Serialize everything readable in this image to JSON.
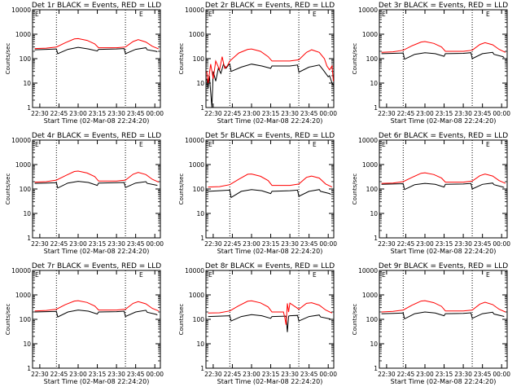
{
  "figure": {
    "colors": {
      "events": "#000000",
      "lld": "#ff0000",
      "axis": "#000000",
      "background": "#ffffff"
    },
    "x_tick_labels": [
      "22:30",
      "22:45",
      "23:00",
      "23:15",
      "23:30",
      "23:45",
      "00:00"
    ],
    "y_tick_labels": [
      "1",
      "10",
      "100",
      "1000",
      "10000"
    ],
    "ylabel": "Counts/sec",
    "xlabel": "Start Time (02-Mar-08 22:24:20)",
    "corner_marks": {
      "left": "E",
      "right": "E"
    }
  },
  "chart_data": [
    {
      "type": "line",
      "title": "Det 1r BLACK = Events, RED = LLD",
      "xlabel": "Start Time (02-Mar-08 22:24:20)",
      "ylabel": "Counts/sec",
      "yscale": "log",
      "ylim": [
        1,
        10000
      ],
      "xlim": [
        "22:24:20",
        "00:04:20"
      ],
      "vlines": [
        "22:43:00",
        "23:37:00"
      ],
      "series": [
        {
          "name": "Events",
          "color": "#000000",
          "x": [
            "22:26",
            "22:35",
            "22:43",
            "22:44",
            "22:52",
            "23:00",
            "23:08",
            "23:15",
            "23:16",
            "23:30",
            "23:36",
            "23:37",
            "23:45",
            "23:53",
            "23:54",
            "00:01",
            "00:02"
          ],
          "y": [
            230,
            240,
            250,
            160,
            240,
            290,
            250,
            205,
            240,
            250,
            260,
            160,
            240,
            280,
            230,
            200,
            190
          ]
        },
        {
          "name": "LLD",
          "color": "#ff0000",
          "x": [
            "22:26",
            "22:35",
            "22:43",
            "22:50",
            "22:57",
            "23:00",
            "23:07",
            "23:13",
            "23:16",
            "23:30",
            "23:37",
            "23:43",
            "23:47",
            "23:53",
            "23:58",
            "00:03"
          ],
          "y": [
            260,
            270,
            300,
            450,
            640,
            660,
            560,
            400,
            280,
            280,
            300,
            500,
            600,
            480,
            320,
            250
          ]
        }
      ]
    },
    {
      "type": "line",
      "title": "Det 2r BLACK = Events, RED = LLD",
      "xlabel": "Start Time (02-Mar-08 22:24:20)",
      "ylabel": "Counts/sec",
      "yscale": "log",
      "ylim": [
        1,
        10000
      ],
      "xlim": [
        "22:24:20",
        "00:04:20"
      ],
      "vlines": [
        "22:43:00",
        "23:37:00"
      ],
      "series": [
        {
          "name": "Events",
          "color": "#000000",
          "x": [
            "22:25",
            "22:26",
            "22:27",
            "22:29",
            "22:30",
            "22:32",
            "22:34",
            "22:36",
            "22:38",
            "22:40",
            "22:42",
            "22:43",
            "22:44",
            "22:52",
            "23:00",
            "23:08",
            "23:15",
            "23:16",
            "23:30",
            "23:36",
            "23:37",
            "23:45",
            "23:53",
            "23:56",
            "23:58",
            "00:00",
            "00:01",
            "00:03",
            "00:04"
          ],
          "y": [
            15,
            6,
            20,
            1,
            30,
            12,
            40,
            25,
            60,
            40,
            55,
            60,
            30,
            45,
            60,
            50,
            40,
            50,
            50,
            55,
            28,
            45,
            55,
            35,
            25,
            18,
            20,
            10,
            8
          ]
        },
        {
          "name": "LLD",
          "color": "#ff0000",
          "x": [
            "22:25",
            "22:26",
            "22:28",
            "22:30",
            "22:32",
            "22:35",
            "22:37",
            "22:39",
            "22:41",
            "22:43",
            "22:50",
            "22:57",
            "23:00",
            "23:07",
            "23:13",
            "23:16",
            "23:30",
            "23:37",
            "23:43",
            "23:47",
            "23:53",
            "23:57",
            "23:59",
            "00:01",
            "00:03",
            "00:04"
          ],
          "y": [
            30,
            10,
            60,
            15,
            80,
            35,
            120,
            40,
            50,
            80,
            170,
            240,
            250,
            200,
            120,
            80,
            80,
            90,
            180,
            230,
            180,
            100,
            50,
            35,
            50,
            12
          ]
        }
      ]
    },
    {
      "type": "line",
      "title": "Det 3r BLACK = Events, RED = LLD",
      "xlabel": "Start Time (02-Mar-08 22:24:20)",
      "ylabel": "Counts/sec",
      "yscale": "log",
      "ylim": [
        1,
        10000
      ],
      "xlim": [
        "22:24:20",
        "00:04:20"
      ],
      "vlines": [
        "22:43:00",
        "23:37:00"
      ],
      "series": [
        {
          "name": "Events",
          "color": "#000000",
          "x": [
            "22:26",
            "22:35",
            "22:43",
            "22:44",
            "22:52",
            "23:00",
            "23:08",
            "23:15",
            "23:16",
            "23:30",
            "23:36",
            "23:37",
            "23:45",
            "23:53",
            "23:54",
            "00:01",
            "00:02"
          ],
          "y": [
            160,
            165,
            170,
            95,
            150,
            175,
            160,
            125,
            160,
            165,
            175,
            100,
            160,
            180,
            150,
            120,
            110
          ]
        },
        {
          "name": "LLD",
          "color": "#ff0000",
          "x": [
            "22:26",
            "22:35",
            "22:43",
            "22:50",
            "22:57",
            "23:00",
            "23:07",
            "23:13",
            "23:16",
            "23:30",
            "23:37",
            "23:43",
            "23:47",
            "23:53",
            "23:58",
            "00:03"
          ],
          "y": [
            180,
            190,
            220,
            340,
            480,
            500,
            420,
            300,
            200,
            200,
            220,
            380,
            450,
            370,
            240,
            180
          ]
        }
      ]
    },
    {
      "type": "line",
      "title": "Det 4r BLACK = Events, RED = LLD",
      "xlabel": "Start Time (02-Mar-08 22:24:20)",
      "ylabel": "Counts/sec",
      "yscale": "log",
      "ylim": [
        1,
        10000
      ],
      "xlim": [
        "22:24:20",
        "00:04:20"
      ],
      "vlines": [
        "22:43:00",
        "23:37:00"
      ],
      "series": [
        {
          "name": "Events",
          "color": "#000000",
          "x": [
            "22:26",
            "22:35",
            "22:43",
            "22:44",
            "22:52",
            "23:00",
            "23:08",
            "23:15",
            "23:16",
            "23:30",
            "23:36",
            "23:37",
            "23:45",
            "23:53",
            "23:54",
            "00:01",
            "00:02"
          ],
          "y": [
            170,
            175,
            180,
            110,
            175,
            205,
            185,
            140,
            175,
            180,
            185,
            115,
            175,
            200,
            170,
            145,
            140
          ]
        },
        {
          "name": "LLD",
          "color": "#ff0000",
          "x": [
            "22:26",
            "22:35",
            "22:43",
            "22:50",
            "22:57",
            "23:00",
            "23:07",
            "23:13",
            "23:16",
            "23:30",
            "23:37",
            "23:43",
            "23:47",
            "23:53",
            "23:58",
            "00:03"
          ],
          "y": [
            190,
            200,
            230,
            350,
            520,
            540,
            450,
            320,
            210,
            210,
            230,
            400,
            480,
            390,
            250,
            190
          ]
        }
      ]
    },
    {
      "type": "line",
      "title": "Det 5r BLACK = Events, RED = LLD",
      "xlabel": "Start Time (02-Mar-08 22:24:20)",
      "ylabel": "Counts/sec",
      "yscale": "log",
      "ylim": [
        1,
        10000
      ],
      "xlim": [
        "22:24:20",
        "00:04:20"
      ],
      "vlines": [
        "22:43:00",
        "23:37:00"
      ],
      "series": [
        {
          "name": "Events",
          "color": "#000000",
          "x": [
            "22:26",
            "22:35",
            "22:43",
            "22:44",
            "22:52",
            "23:00",
            "23:08",
            "23:15",
            "23:16",
            "23:30",
            "23:36",
            "23:37",
            "23:45",
            "23:53",
            "23:54",
            "00:01",
            "00:02"
          ],
          "y": [
            80,
            85,
            90,
            45,
            80,
            95,
            85,
            65,
            80,
            85,
            90,
            50,
            80,
            95,
            80,
            65,
            60
          ]
        },
        {
          "name": "LLD",
          "color": "#ff0000",
          "x": [
            "22:26",
            "22:35",
            "22:43",
            "22:50",
            "22:57",
            "23:00",
            "23:07",
            "23:13",
            "23:16",
            "23:30",
            "23:37",
            "23:43",
            "23:47",
            "23:53",
            "23:58",
            "00:03"
          ],
          "y": [
            120,
            125,
            150,
            250,
            400,
            410,
            330,
            220,
            140,
            140,
            160,
            300,
            340,
            280,
            160,
            120
          ]
        }
      ]
    },
    {
      "type": "line",
      "title": "Det 6r BLACK = Events, RED = LLD",
      "xlabel": "Start Time (02-Mar-08 22:24:20)",
      "ylabel": "Counts/sec",
      "yscale": "log",
      "ylim": [
        1,
        10000
      ],
      "xlim": [
        "22:24:20",
        "00:04:20"
      ],
      "vlines": [
        "22:43:00",
        "23:37:00"
      ],
      "series": [
        {
          "name": "Events",
          "color": "#000000",
          "x": [
            "22:26",
            "22:35",
            "22:43",
            "22:44",
            "22:52",
            "23:00",
            "23:08",
            "23:15",
            "23:16",
            "23:30",
            "23:36",
            "23:37",
            "23:45",
            "23:53",
            "23:54",
            "00:01",
            "00:02"
          ],
          "y": [
            155,
            160,
            165,
            95,
            150,
            170,
            155,
            120,
            155,
            160,
            170,
            100,
            155,
            175,
            150,
            120,
            115
          ]
        },
        {
          "name": "LLD",
          "color": "#ff0000",
          "x": [
            "22:26",
            "22:35",
            "22:43",
            "22:50",
            "22:57",
            "23:00",
            "23:07",
            "23:13",
            "23:16",
            "23:30",
            "23:37",
            "23:43",
            "23:47",
            "23:53",
            "23:58",
            "00:03"
          ],
          "y": [
            170,
            175,
            200,
            300,
            440,
            460,
            390,
            280,
            190,
            190,
            210,
            350,
            410,
            340,
            220,
            170
          ]
        }
      ]
    },
    {
      "type": "line",
      "title": "Det 7r BLACK = Events, RED = LLD",
      "xlabel": "Start Time (02-Mar-08 22:24:20)",
      "ylabel": "Counts/sec",
      "yscale": "log",
      "ylim": [
        1,
        10000
      ],
      "xlim": [
        "22:24:20",
        "00:04:20"
      ],
      "vlines": [
        "22:43:00",
        "23:37:00"
      ],
      "series": [
        {
          "name": "Events",
          "color": "#000000",
          "x": [
            "22:26",
            "22:35",
            "22:43",
            "22:44",
            "22:52",
            "23:00",
            "23:08",
            "23:15",
            "23:16",
            "23:30",
            "23:36",
            "23:37",
            "23:45",
            "23:53",
            "23:54",
            "00:01",
            "00:02"
          ],
          "y": [
            200,
            205,
            210,
            125,
            200,
            240,
            215,
            165,
            200,
            205,
            215,
            130,
            200,
            235,
            195,
            160,
            150
          ]
        },
        {
          "name": "LLD",
          "color": "#ff0000",
          "x": [
            "22:26",
            "22:35",
            "22:43",
            "22:50",
            "22:57",
            "23:00",
            "23:07",
            "23:13",
            "23:16",
            "23:30",
            "23:37",
            "23:43",
            "23:47",
            "23:53",
            "23:58",
            "00:03"
          ],
          "y": [
            220,
            230,
            260,
            400,
            560,
            580,
            490,
            350,
            240,
            240,
            260,
            450,
            530,
            430,
            280,
            220
          ]
        }
      ]
    },
    {
      "type": "line",
      "title": "Det 8r BLACK = Events, RED = LLD",
      "xlabel": "Start Time (02-Mar-08 22:24:20)",
      "ylabel": "Counts/sec",
      "yscale": "log",
      "ylim": [
        1,
        10000
      ],
      "xlim": [
        "22:24:20",
        "00:04:20"
      ],
      "vlines": [
        "22:43:00",
        "23:37:00"
      ],
      "series": [
        {
          "name": "Events",
          "color": "#000000",
          "x": [
            "22:26",
            "22:35",
            "22:43",
            "22:44",
            "22:52",
            "23:00",
            "23:08",
            "23:15",
            "23:16",
            "23:27",
            "23:28",
            "23:29",
            "23:30",
            "23:36",
            "23:37",
            "23:45",
            "23:53",
            "23:54",
            "00:01",
            "00:02"
          ],
          "y": [
            130,
            135,
            140,
            85,
            130,
            155,
            140,
            110,
            130,
            135,
            30,
            135,
            140,
            145,
            85,
            130,
            150,
            125,
            105,
            100
          ]
        },
        {
          "name": "LLD",
          "color": "#ff0000",
          "x": [
            "22:26",
            "22:35",
            "22:43",
            "22:50",
            "22:57",
            "23:00",
            "23:07",
            "23:13",
            "23:16",
            "23:25",
            "23:26",
            "23:27",
            "23:28",
            "23:29",
            "23:30",
            "23:37",
            "23:43",
            "23:47",
            "23:53",
            "23:58",
            "00:03"
          ],
          "y": [
            180,
            185,
            220,
            360,
            550,
            570,
            470,
            320,
            200,
            200,
            120,
            60,
            450,
            200,
            460,
            260,
            450,
            480,
            380,
            240,
            180
          ]
        }
      ]
    },
    {
      "type": "line",
      "title": "Det 9r BLACK = Events, RED = LLD",
      "xlabel": "Start Time (02-Mar-08 22:24:20)",
      "ylabel": "Counts/sec",
      "yscale": "log",
      "ylim": [
        1,
        10000
      ],
      "xlim": [
        "22:24:20",
        "00:04:20"
      ],
      "vlines": [
        "22:43:00",
        "23:37:00"
      ],
      "series": [
        {
          "name": "Events",
          "color": "#000000",
          "x": [
            "22:26",
            "22:35",
            "22:43",
            "22:44",
            "22:52",
            "23:00",
            "23:08",
            "23:15",
            "23:16",
            "23:30",
            "23:36",
            "23:37",
            "23:45",
            "23:53",
            "23:54",
            "00:01",
            "00:02"
          ],
          "y": [
            170,
            175,
            180,
            105,
            170,
            200,
            180,
            140,
            170,
            175,
            185,
            110,
            170,
            195,
            165,
            135,
            130
          ]
        },
        {
          "name": "LLD",
          "color": "#ff0000",
          "x": [
            "22:26",
            "22:35",
            "22:43",
            "22:50",
            "22:57",
            "23:00",
            "23:07",
            "23:13",
            "23:16",
            "23:30",
            "23:37",
            "23:43",
            "23:47",
            "23:53",
            "23:58",
            "00:03"
          ],
          "y": [
            200,
            210,
            240,
            380,
            560,
            580,
            480,
            340,
            220,
            220,
            240,
            420,
            500,
            400,
            260,
            200
          ]
        }
      ]
    }
  ]
}
